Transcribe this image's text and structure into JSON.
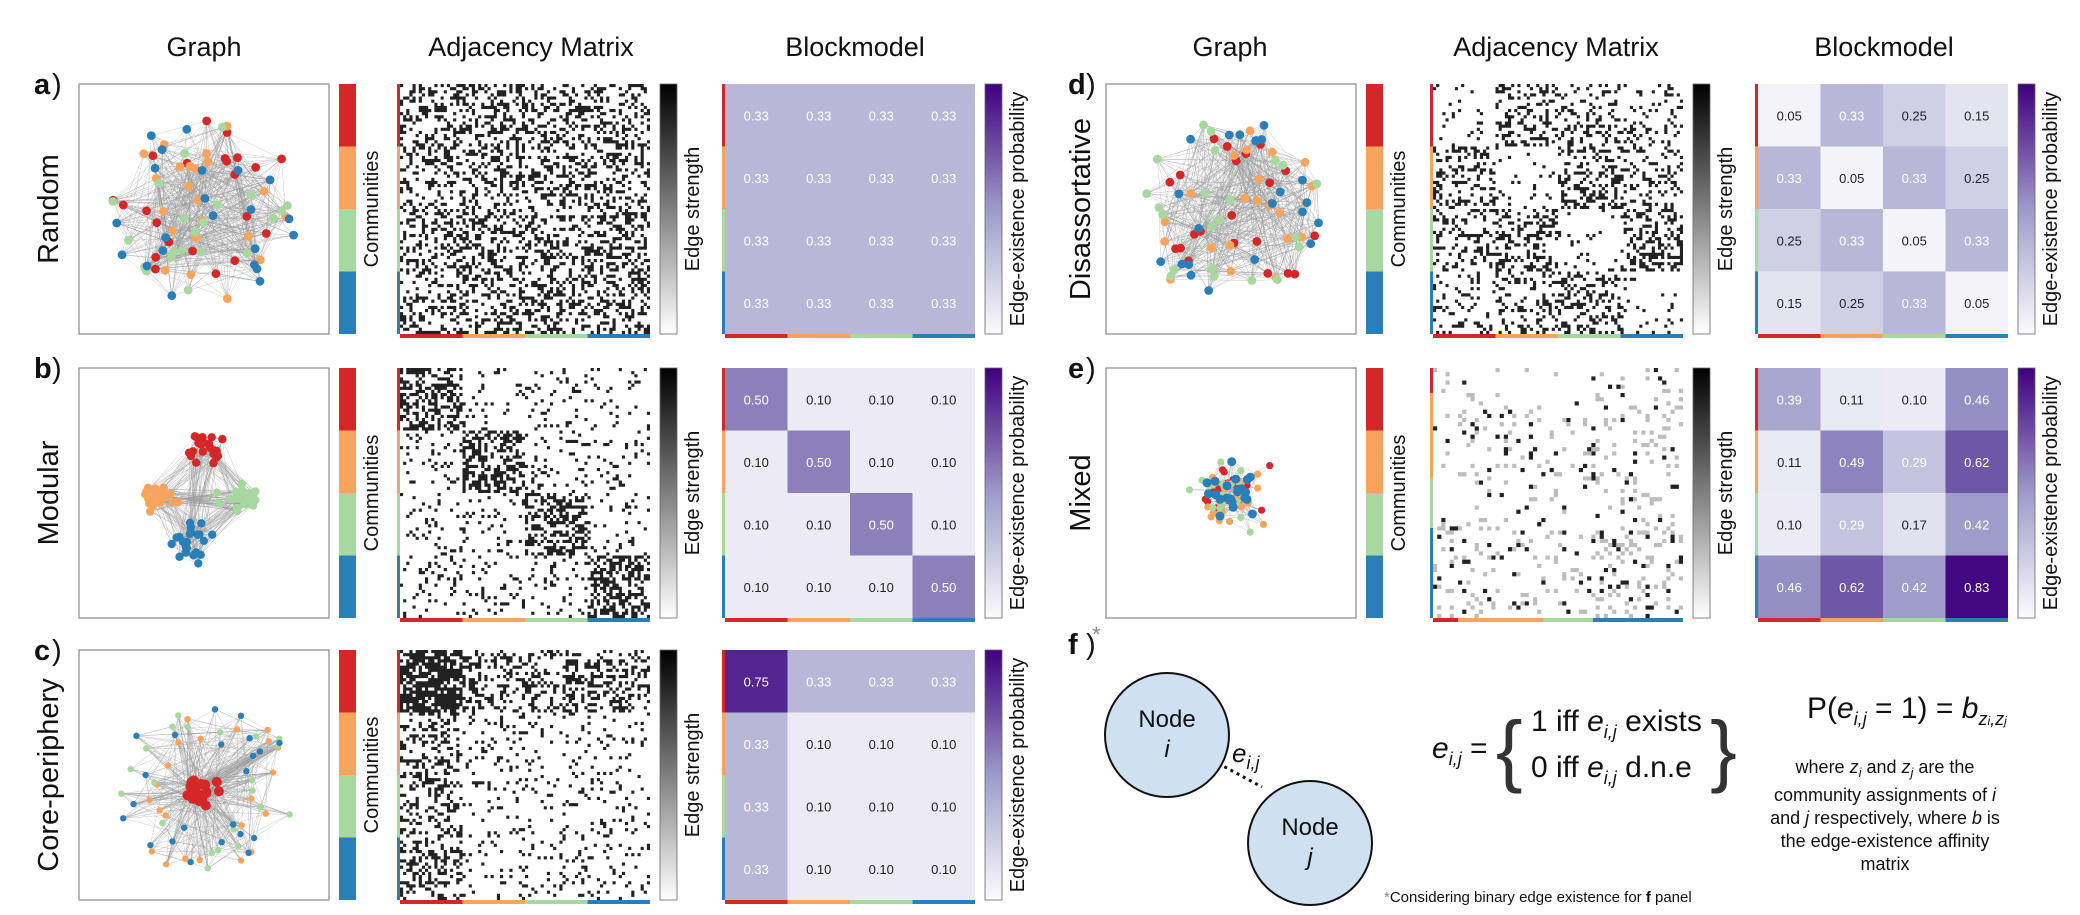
{
  "column_headers": [
    "Graph",
    "Adjacency Matrix",
    "Blockmodel"
  ],
  "labels": {
    "communities": "Communities",
    "edge_strength": "Edge strength",
    "edge_prob": "Edge-existence probability"
  },
  "community_colors": [
    "#d62728",
    "#f9a45c",
    "#a7d8a0",
    "#2a7fb8"
  ],
  "panels": [
    {
      "letter": "a",
      "name": "Random",
      "blockmodel": [
        [
          "0.33",
          "0.33",
          "0.33",
          "0.33"
        ],
        [
          "0.33",
          "0.33",
          "0.33",
          "0.33"
        ],
        [
          "0.33",
          "0.33",
          "0.33",
          "0.33"
        ],
        [
          "0.33",
          "0.33",
          "0.33",
          "0.33"
        ]
      ]
    },
    {
      "letter": "b",
      "name": "Modular",
      "blockmodel": [
        [
          "0.50",
          "0.10",
          "0.10",
          "0.10"
        ],
        [
          "0.10",
          "0.50",
          "0.10",
          "0.10"
        ],
        [
          "0.10",
          "0.10",
          "0.50",
          "0.10"
        ],
        [
          "0.10",
          "0.10",
          "0.10",
          "0.50"
        ]
      ]
    },
    {
      "letter": "c",
      "name": "Core-periphery",
      "blockmodel": [
        [
          "0.75",
          "0.33",
          "0.33",
          "0.33"
        ],
        [
          "0.33",
          "0.10",
          "0.10",
          "0.10"
        ],
        [
          "0.33",
          "0.10",
          "0.10",
          "0.10"
        ],
        [
          "0.33",
          "0.10",
          "0.10",
          "0.10"
        ]
      ]
    },
    {
      "letter": "d",
      "name": "Disassortative",
      "blockmodel": [
        [
          "0.05",
          "0.33",
          "0.25",
          "0.15"
        ],
        [
          "0.33",
          "0.05",
          "0.33",
          "0.25"
        ],
        [
          "0.25",
          "0.33",
          "0.05",
          "0.33"
        ],
        [
          "0.15",
          "0.25",
          "0.33",
          "0.05"
        ]
      ]
    },
    {
      "letter": "e",
      "name": "Mixed",
      "blockmodel": [
        [
          "0.39",
          "0.11",
          "0.10",
          "0.46"
        ],
        [
          "0.11",
          "0.49",
          "0.29",
          "0.62"
        ],
        [
          "0.10",
          "0.29",
          "0.17",
          "0.42"
        ],
        [
          "0.46",
          "0.62",
          "0.42",
          "0.83"
        ]
      ]
    }
  ],
  "panel_f": {
    "letter": "f",
    "star": "*",
    "node_word": "Node",
    "node_i": "i",
    "node_j": "j",
    "edge": "e",
    "edge_sub": "i,j",
    "eq_lhs_sub": "i,j",
    "case1_pre": "1 iff ",
    "case1_post": " exists",
    "case2_pre": "0 iff ",
    "case2_post": " d.n.e",
    "prob_P": "P(",
    "prob_mid": " = 1) = ",
    "prob_b": "b",
    "prob_sub": "z",
    "where_1": "where ",
    "where_2": " and ",
    "where_3": " are the community assignments of ",
    "where_4": " and ",
    "where_5": " respectively, where ",
    "where_6": " is the edge-existence affinity matrix",
    "z_i": "z",
    "z_j": "z",
    "footnote_pre": "Considering binary edge existence for ",
    "footnote_bold": "f",
    "footnote_post": " panel"
  }
}
